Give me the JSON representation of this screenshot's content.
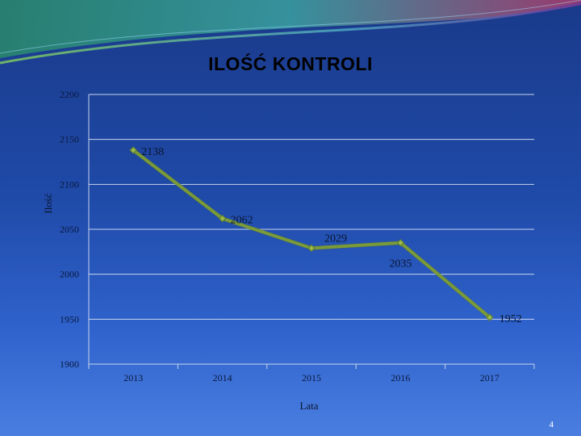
{
  "slide": {
    "page_number": "4"
  },
  "chart_data": {
    "type": "line",
    "title": "ILOŚĆ KONTROLI",
    "xlabel": "Lata",
    "ylabel": "Ilość",
    "categories": [
      "2013",
      "2014",
      "2015",
      "2016",
      "2017"
    ],
    "series": [
      {
        "values": [
          2138,
          2062,
          2029,
          2035,
          1952
        ],
        "color": "#7a9a3a"
      }
    ],
    "data_labels": [
      "2138",
      "2062",
      "2029",
      "2035",
      "1952"
    ],
    "ylim": [
      1900,
      2200
    ],
    "yticks": [
      "1900",
      "1950",
      "2000",
      "2050",
      "2100",
      "2150",
      "2200"
    ],
    "grid": true,
    "legend": "none",
    "colors": {
      "line": "#7a9a3a",
      "marker": "#9ab84a",
      "grid": "#c8d4ee"
    }
  }
}
